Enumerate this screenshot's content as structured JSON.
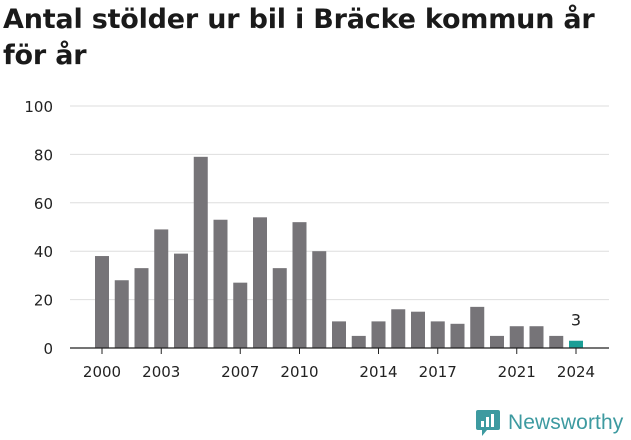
{
  "chart_data": {
    "type": "bar",
    "title": "Antal stölder ur bil i Bräcke kommun år för år",
    "x": [
      2000,
      2001,
      2002,
      2003,
      2004,
      2005,
      2006,
      2007,
      2008,
      2009,
      2010,
      2011,
      2012,
      2013,
      2014,
      2015,
      2016,
      2017,
      2018,
      2019,
      2020,
      2021,
      2022,
      2023,
      2024
    ],
    "values": [
      38,
      28,
      33,
      49,
      39,
      79,
      53,
      27,
      54,
      33,
      52,
      40,
      11,
      5,
      11,
      16,
      15,
      11,
      10,
      17,
      5,
      9,
      9,
      5,
      3
    ],
    "xticks": [
      "2000",
      "2003",
      "2007",
      "2010",
      "2014",
      "2017",
      "2021",
      "2024"
    ],
    "yticks": [
      0,
      20,
      40,
      60,
      80,
      100
    ],
    "ylim": [
      0,
      100
    ],
    "highlight_index": 24,
    "highlight_label": "3",
    "grid": "horizontal",
    "colors": {
      "bar": "#767478",
      "highlight": "#1a9e96",
      "grid": "#dedede",
      "axis": "#222222",
      "text": "#222222"
    }
  },
  "brand": {
    "name": "Newsworthy",
    "icon": "newsworthy-logo-icon",
    "color": "#3d9aa0"
  }
}
